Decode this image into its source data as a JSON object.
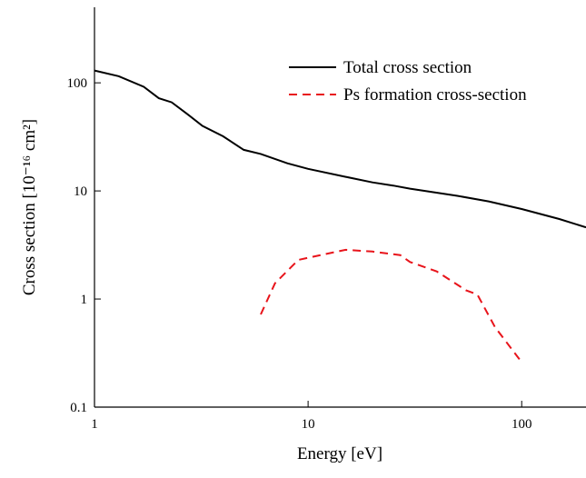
{
  "chart_data": {
    "type": "line",
    "xlabel": "Energy [eV]",
    "ylabel": "Cross section [10⁻¹⁶ cm²]",
    "xlim": [
      1,
      200
    ],
    "ylim": [
      0.1,
      500
    ],
    "xticks": [
      1,
      10,
      100
    ],
    "yticks": [
      0.1,
      1,
      10,
      100
    ],
    "xscale": "log",
    "yscale": "log",
    "legend": "upper right",
    "series": [
      {
        "name": "Total cross section",
        "color": "#000000",
        "linestyle": "solid",
        "x": [
          1,
          1.3,
          1.7,
          2,
          2.3,
          2.7,
          3.2,
          4,
          5,
          6,
          8,
          10,
          15,
          20,
          25,
          30,
          50,
          70,
          100,
          150,
          200
        ],
        "values": [
          130,
          115,
          92,
          72,
          66,
          52,
          40,
          32,
          24,
          22,
          18,
          16,
          13.5,
          12,
          11.2,
          10.5,
          9,
          8,
          6.8,
          5.5,
          4.6
        ]
      },
      {
        "name": "Ps formation cross-section",
        "color": "#e8141b",
        "linestyle": "dashed",
        "x": [
          6,
          7,
          9,
          12,
          15,
          20,
          27,
          30,
          40,
          55,
          62,
          75,
          100
        ],
        "values": [
          0.72,
          1.4,
          2.3,
          2.6,
          2.85,
          2.75,
          2.55,
          2.2,
          1.8,
          1.2,
          1.1,
          0.55,
          0.26
        ]
      }
    ]
  }
}
